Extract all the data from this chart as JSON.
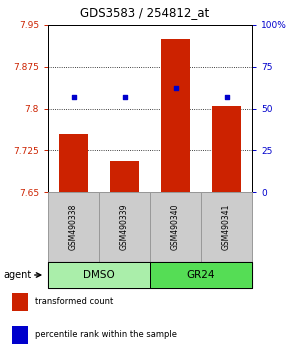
{
  "title": "GDS3583 / 254812_at",
  "samples": [
    "GSM490338",
    "GSM490339",
    "GSM490340",
    "GSM490341"
  ],
  "bar_values": [
    7.755,
    7.705,
    7.925,
    7.805
  ],
  "bar_bottom": 7.65,
  "bar_color": "#cc2200",
  "percentile_values": [
    57,
    57,
    62,
    57
  ],
  "percentile_color": "#0000cc",
  "ylim_left": [
    7.65,
    7.95
  ],
  "ylim_right": [
    0,
    100
  ],
  "yticks_left": [
    7.65,
    7.725,
    7.8,
    7.875,
    7.95
  ],
  "yticks_right": [
    0,
    25,
    50,
    75,
    100
  ],
  "ytick_labels_left": [
    "7.65",
    "7.725",
    "7.8",
    "7.875",
    "7.95"
  ],
  "ytick_labels_right": [
    "0",
    "25",
    "50",
    "75",
    "100%"
  ],
  "hlines": [
    7.725,
    7.8,
    7.875
  ],
  "groups": [
    {
      "label": "DMSO",
      "samples": [
        0,
        1
      ],
      "color": "#aaeeaa"
    },
    {
      "label": "GR24",
      "samples": [
        2,
        3
      ],
      "color": "#55dd55"
    }
  ],
  "agent_label": "agent",
  "legend_items": [
    {
      "color": "#cc2200",
      "label": "transformed count"
    },
    {
      "color": "#0000cc",
      "label": "percentile rank within the sample"
    }
  ],
  "left_tick_color": "#cc2200",
  "right_tick_color": "#0000cc",
  "bar_width": 0.55,
  "sample_box_color": "#cccccc",
  "sample_box_edge": "#999999"
}
